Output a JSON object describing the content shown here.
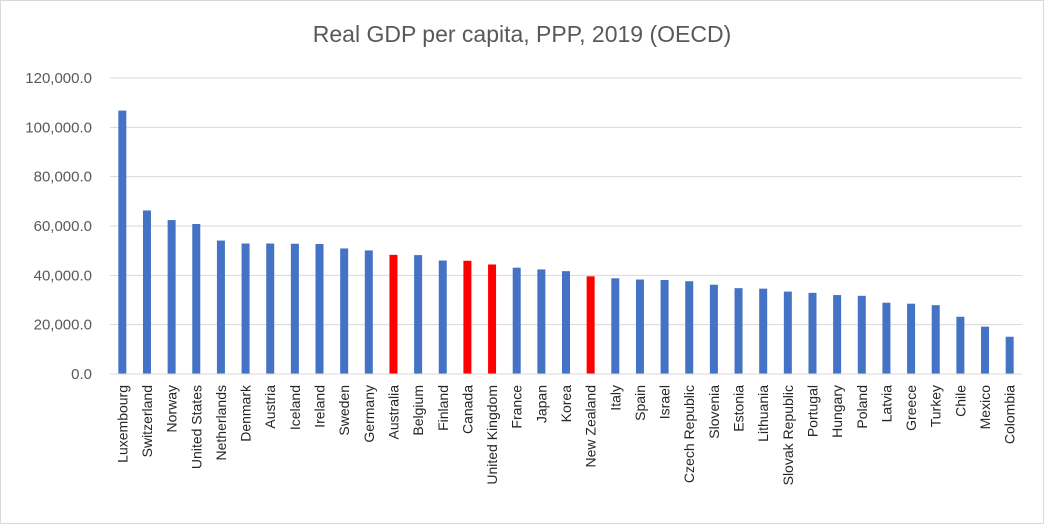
{
  "chart_data": {
    "type": "bar",
    "title": "Real GDP per capita, PPP, 2019  (OECD)",
    "xlabel": "",
    "ylabel": "",
    "ylim": [
      0,
      120000
    ],
    "yticks": [
      0,
      20000,
      40000,
      60000,
      80000,
      100000,
      120000
    ],
    "ytick_labels": [
      "0.0",
      "20,000.0",
      "40,000.0",
      "60,000.0",
      "80,000.0",
      "100,000.0",
      "120,000.0"
    ],
    "grid": true,
    "legend": "none",
    "default_color": "#4472c4",
    "highlight_color": "#ff0000",
    "categories": [
      "Luxembourg",
      "Switzerland",
      "Norway",
      "United States",
      "Netherlands",
      "Denmark",
      "Austria",
      "Iceland",
      "Ireland",
      "Sweden",
      "Germany",
      "Australia",
      "Belgium",
      "Finland",
      "Canada",
      "United Kingdom",
      "France",
      "Japan",
      "Korea",
      "New Zealand",
      "Italy",
      "Spain",
      "Israel",
      "Czech Republic",
      "Slovenia",
      "Estonia",
      "Lithuania",
      "Slovak Republic",
      "Portugal",
      "Hungary",
      "Poland",
      "Latvia",
      "Greece",
      "Turkey",
      "Chile",
      "Mexico",
      "Colombia"
    ],
    "values": [
      106800,
      66300,
      62400,
      60800,
      54100,
      52900,
      52900,
      52800,
      52700,
      50900,
      50100,
      48300,
      48200,
      46000,
      45900,
      44400,
      43100,
      42400,
      41700,
      39600,
      38800,
      38300,
      38100,
      37600,
      36200,
      34800,
      34600,
      33400,
      32900,
      32000,
      31700,
      28900,
      28500,
      27900,
      23200,
      19200,
      15100
    ],
    "highlighted": [
      "Australia",
      "Canada",
      "United Kingdom",
      "New Zealand"
    ]
  }
}
